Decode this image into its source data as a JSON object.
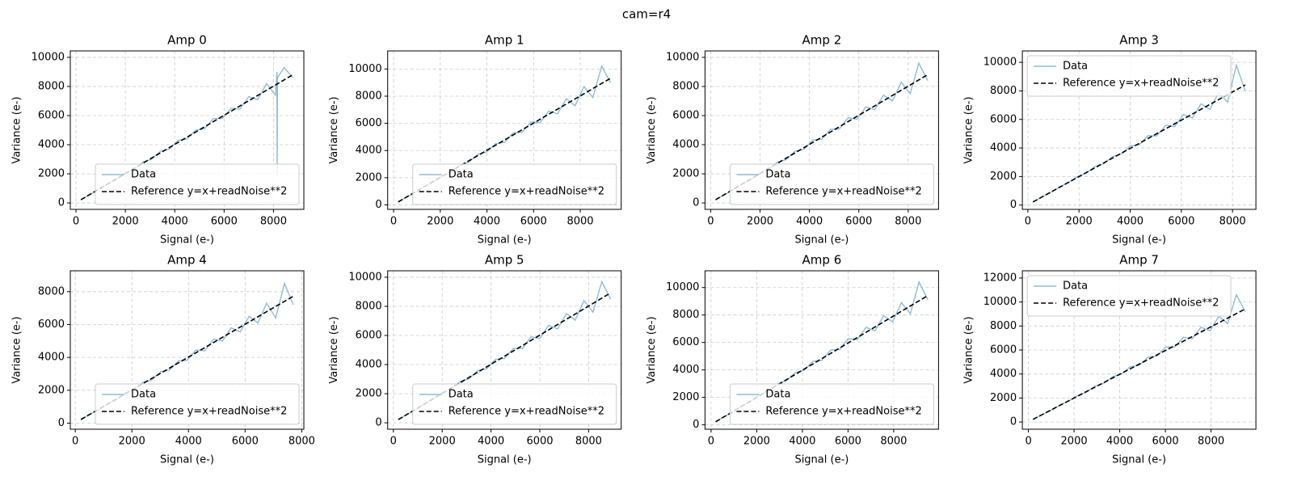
{
  "title": "cam=r4",
  "chart_data": [
    {
      "type": "line",
      "title": "Amp 0",
      "xlabel": "Signal (e-)",
      "ylabel": "Variance (e-)",
      "grid": true,
      "legend": "lower right",
      "xlim": [
        -230,
        9230
      ],
      "ylim": [
        -440,
        10440
      ],
      "xticks": [
        0,
        2000,
        4000,
        6000,
        8000
      ],
      "yticks": [
        0,
        2000,
        4000,
        6000,
        8000,
        10000
      ],
      "series": [
        {
          "name": "Data",
          "color": "#8fbbd9",
          "linestyle": "solid",
          "x": [
            200,
            560,
            920,
            1270,
            1630,
            1990,
            2350,
            2710,
            3060,
            3420,
            3780,
            4140,
            4500,
            4850,
            5210,
            5570,
            5930,
            6290,
            6640,
            7000,
            7360,
            7720,
            8080,
            8140,
            8150,
            8160,
            8430,
            8790
          ],
          "values": [
            210,
            580,
            900,
            1310,
            1600,
            2050,
            2300,
            2800,
            3000,
            3550,
            3700,
            4300,
            4400,
            5000,
            5100,
            5800,
            5800,
            6500,
            6450,
            7300,
            7100,
            8200,
            7400,
            9000,
            1900,
            8600,
            9300,
            8600
          ]
        },
        {
          "name": "Reference y=x+readNoise**2",
          "color": "#000000",
          "linestyle": "dashed",
          "x": [
            200,
            8790
          ],
          "values": [
            220,
            8810
          ]
        }
      ]
    },
    {
      "type": "line",
      "title": "Amp 1",
      "xlabel": "Signal (e-)",
      "ylabel": "Variance (e-)",
      "grid": true,
      "legend": "lower right",
      "xlim": [
        -255,
        9755
      ],
      "ylim": [
        -330,
        11330
      ],
      "xticks": [
        0,
        2000,
        4000,
        6000,
        8000
      ],
      "yticks": [
        0,
        2000,
        4000,
        6000,
        8000,
        10000
      ],
      "series": [
        {
          "name": "Data",
          "color": "#8fbbd9",
          "linestyle": "solid",
          "x": [
            200,
            580,
            960,
            1340,
            1720,
            2100,
            2470,
            2850,
            3230,
            3610,
            3990,
            4370,
            4750,
            5130,
            5510,
            5890,
            6270,
            6650,
            7020,
            7400,
            7780,
            8160,
            8540,
            8920,
            9300
          ],
          "values": [
            210,
            600,
            940,
            1380,
            1690,
            2150,
            2420,
            2930,
            3150,
            3720,
            3900,
            4500,
            4600,
            5300,
            5350,
            6100,
            6050,
            6900,
            6700,
            7800,
            7300,
            8700,
            7900,
            10200,
            9000
          ]
        },
        {
          "name": "Reference y=x+readNoise**2",
          "color": "#000000",
          "linestyle": "dashed",
          "x": [
            200,
            9300
          ],
          "values": [
            220,
            9320
          ]
        }
      ]
    },
    {
      "type": "line",
      "title": "Amp 2",
      "xlabel": "Signal (e-)",
      "ylabel": "Variance (e-)",
      "grid": true,
      "legend": "lower right",
      "xlim": [
        -230,
        9230
      ],
      "ylim": [
        -440,
        10440
      ],
      "xticks": [
        0,
        2000,
        4000,
        6000,
        8000
      ],
      "yticks": [
        0,
        2000,
        4000,
        6000,
        8000,
        10000
      ],
      "series": [
        {
          "name": "Data",
          "color": "#8fbbd9",
          "linestyle": "solid",
          "x": [
            200,
            560,
            920,
            1270,
            1630,
            1990,
            2350,
            2710,
            3060,
            3420,
            3780,
            4140,
            4500,
            4850,
            5210,
            5570,
            5930,
            6290,
            6640,
            7000,
            7360,
            7720,
            8080,
            8430,
            8790
          ],
          "values": [
            220,
            570,
            910,
            1320,
            1600,
            2060,
            2290,
            2800,
            2980,
            3560,
            3680,
            4320,
            4380,
            5050,
            5080,
            5850,
            5750,
            6600,
            6400,
            7400,
            7000,
            8300,
            7500,
            9600,
            8400
          ]
        },
        {
          "name": "Reference y=x+readNoise**2",
          "color": "#000000",
          "linestyle": "dashed",
          "x": [
            200,
            8790
          ],
          "values": [
            220,
            8810
          ]
        }
      ]
    },
    {
      "type": "line",
      "title": "Amp 3",
      "xlabel": "Signal (e-)",
      "ylabel": "Variance (e-)",
      "grid": true,
      "legend": "upper left",
      "xlim": [
        -215,
        8915
      ],
      "ylim": [
        -300,
        10800
      ],
      "xticks": [
        0,
        2000,
        4000,
        6000,
        8000
      ],
      "yticks": [
        0,
        2000,
        4000,
        6000,
        8000,
        10000
      ],
      "series": [
        {
          "name": "Data",
          "color": "#8fbbd9",
          "linestyle": "solid",
          "x": [
            200,
            550,
            890,
            1240,
            1580,
            1930,
            2280,
            2620,
            2970,
            3310,
            3660,
            4010,
            4350,
            4700,
            5040,
            5390,
            5740,
            6080,
            6430,
            6770,
            7120,
            7460,
            7810,
            8150,
            8500
          ],
          "values": [
            210,
            560,
            880,
            1270,
            1560,
            1980,
            2240,
            2690,
            2900,
            3400,
            3580,
            4150,
            4220,
            4860,
            4850,
            5600,
            5500,
            6350,
            6100,
            7100,
            6700,
            7900,
            7200,
            9800,
            8000
          ]
        },
        {
          "name": "Reference y=x+readNoise**2",
          "color": "#000000",
          "linestyle": "dashed",
          "x": [
            200,
            8500
          ],
          "values": [
            220,
            8420
          ]
        }
      ]
    },
    {
      "type": "line",
      "title": "Amp 4",
      "xlabel": "Signal (e-)",
      "ylabel": "Variance (e-)",
      "grid": true,
      "legend": "lower right",
      "xlim": [
        -175,
        8075
      ],
      "ylim": [
        -370,
        9270
      ],
      "xticks": [
        0,
        2000,
        4000,
        6000,
        8000
      ],
      "yticks": [
        0,
        2000,
        4000,
        6000,
        8000
      ],
      "series": [
        {
          "name": "Data",
          "color": "#8fbbd9",
          "linestyle": "solid",
          "x": [
            200,
            510,
            830,
            1140,
            1450,
            1760,
            2080,
            2390,
            2700,
            3010,
            3330,
            3640,
            3950,
            4260,
            4580,
            4890,
            5200,
            5510,
            5830,
            6140,
            6450,
            6760,
            7080,
            7390,
            7700
          ],
          "values": [
            210,
            530,
            810,
            1180,
            1420,
            1820,
            2030,
            2480,
            2620,
            3120,
            3230,
            3780,
            3820,
            4450,
            4400,
            5120,
            5000,
            5800,
            5550,
            6500,
            6100,
            7300,
            6400,
            8500,
            7200
          ]
        },
        {
          "name": "Reference y=x+readNoise**2",
          "color": "#000000",
          "linestyle": "dashed",
          "x": [
            200,
            7700
          ],
          "values": [
            220,
            7720
          ]
        }
      ]
    },
    {
      "type": "line",
      "title": "Amp 5",
      "xlabel": "Signal (e-)",
      "ylabel": "Variance (e-)",
      "grid": true,
      "legend": "lower right",
      "xlim": [
        -235,
        9335
      ],
      "ylim": [
        -440,
        10440
      ],
      "xticks": [
        0,
        2000,
        4000,
        6000,
        8000
      ],
      "yticks": [
        0,
        2000,
        4000,
        6000,
        8000,
        10000
      ],
      "series": [
        {
          "name": "Data",
          "color": "#8fbbd9",
          "linestyle": "solid",
          "x": [
            200,
            560,
            930,
            1290,
            1650,
            2010,
            2380,
            2740,
            3100,
            3460,
            3830,
            4190,
            4550,
            4910,
            5280,
            5640,
            6000,
            6360,
            6730,
            7090,
            7450,
            7810,
            8180,
            8540,
            8900
          ],
          "values": [
            210,
            580,
            900,
            1330,
            1620,
            2070,
            2320,
            2840,
            3020,
            3590,
            3720,
            4360,
            4420,
            5100,
            5100,
            5900,
            5800,
            6700,
            6450,
            7500,
            7050,
            8400,
            7600,
            9700,
            8500
          ]
        },
        {
          "name": "Reference y=x+readNoise**2",
          "color": "#000000",
          "linestyle": "dashed",
          "x": [
            200,
            8900
          ],
          "values": [
            220,
            8920
          ]
        }
      ]
    },
    {
      "type": "line",
      "title": "Amp 6",
      "xlabel": "Signal (e-)",
      "ylabel": "Variance (e-)",
      "grid": true,
      "legend": "lower right",
      "xlim": [
        -265,
        9965
      ],
      "ylim": [
        -320,
        11220
      ],
      "xticks": [
        0,
        2000,
        4000,
        6000,
        8000
      ],
      "yticks": [
        0,
        2000,
        4000,
        6000,
        8000,
        10000
      ],
      "series": [
        {
          "name": "Data",
          "color": "#8fbbd9",
          "linestyle": "solid",
          "x": [
            200,
            590,
            980,
            1360,
            1750,
            2140,
            2530,
            2910,
            3300,
            3690,
            4080,
            4460,
            4850,
            5240,
            5630,
            6010,
            6400,
            6790,
            7180,
            7560,
            7950,
            8340,
            8730,
            9110,
            9500
          ],
          "values": [
            210,
            610,
            950,
            1400,
            1720,
            2200,
            2470,
            3000,
            3220,
            3800,
            3980,
            4620,
            4700,
            5450,
            5480,
            6280,
            6200,
            7100,
            6850,
            7950,
            7500,
            8900,
            8100,
            10400,
            9100
          ]
        },
        {
          "name": "Reference y=x+readNoise**2",
          "color": "#000000",
          "linestyle": "dashed",
          "x": [
            200,
            9500
          ],
          "values": [
            220,
            9420
          ]
        }
      ]
    },
    {
      "type": "line",
      "title": "Amp 7",
      "xlabel": "Signal (e-)",
      "ylabel": "Variance (e-)",
      "grid": true,
      "legend": "upper left",
      "xlim": [
        -265,
        9965
      ],
      "ylim": [
        -600,
        12600
      ],
      "xticks": [
        0,
        2000,
        4000,
        6000,
        8000
      ],
      "yticks": [
        0,
        2000,
        4000,
        6000,
        8000,
        10000,
        12000
      ],
      "series": [
        {
          "name": "Data",
          "color": "#8fbbd9",
          "linestyle": "solid",
          "x": [
            200,
            590,
            980,
            1360,
            1750,
            2140,
            2530,
            2910,
            3300,
            3690,
            4080,
            4460,
            4850,
            5240,
            5630,
            6010,
            6400,
            6790,
            7180,
            7560,
            7950,
            8340,
            8730,
            9110,
            9500
          ],
          "values": [
            210,
            600,
            960,
            1390,
            1730,
            2180,
            2480,
            2980,
            3230,
            3780,
            4000,
            4600,
            4720,
            5400,
            5500,
            6250,
            6250,
            7050,
            6950,
            7900,
            7600,
            8800,
            8200,
            10600,
            9200
          ]
        },
        {
          "name": "Reference y=x+readNoise**2",
          "color": "#000000",
          "linestyle": "dashed",
          "x": [
            200,
            9500
          ],
          "values": [
            220,
            9420
          ]
        }
      ]
    }
  ]
}
